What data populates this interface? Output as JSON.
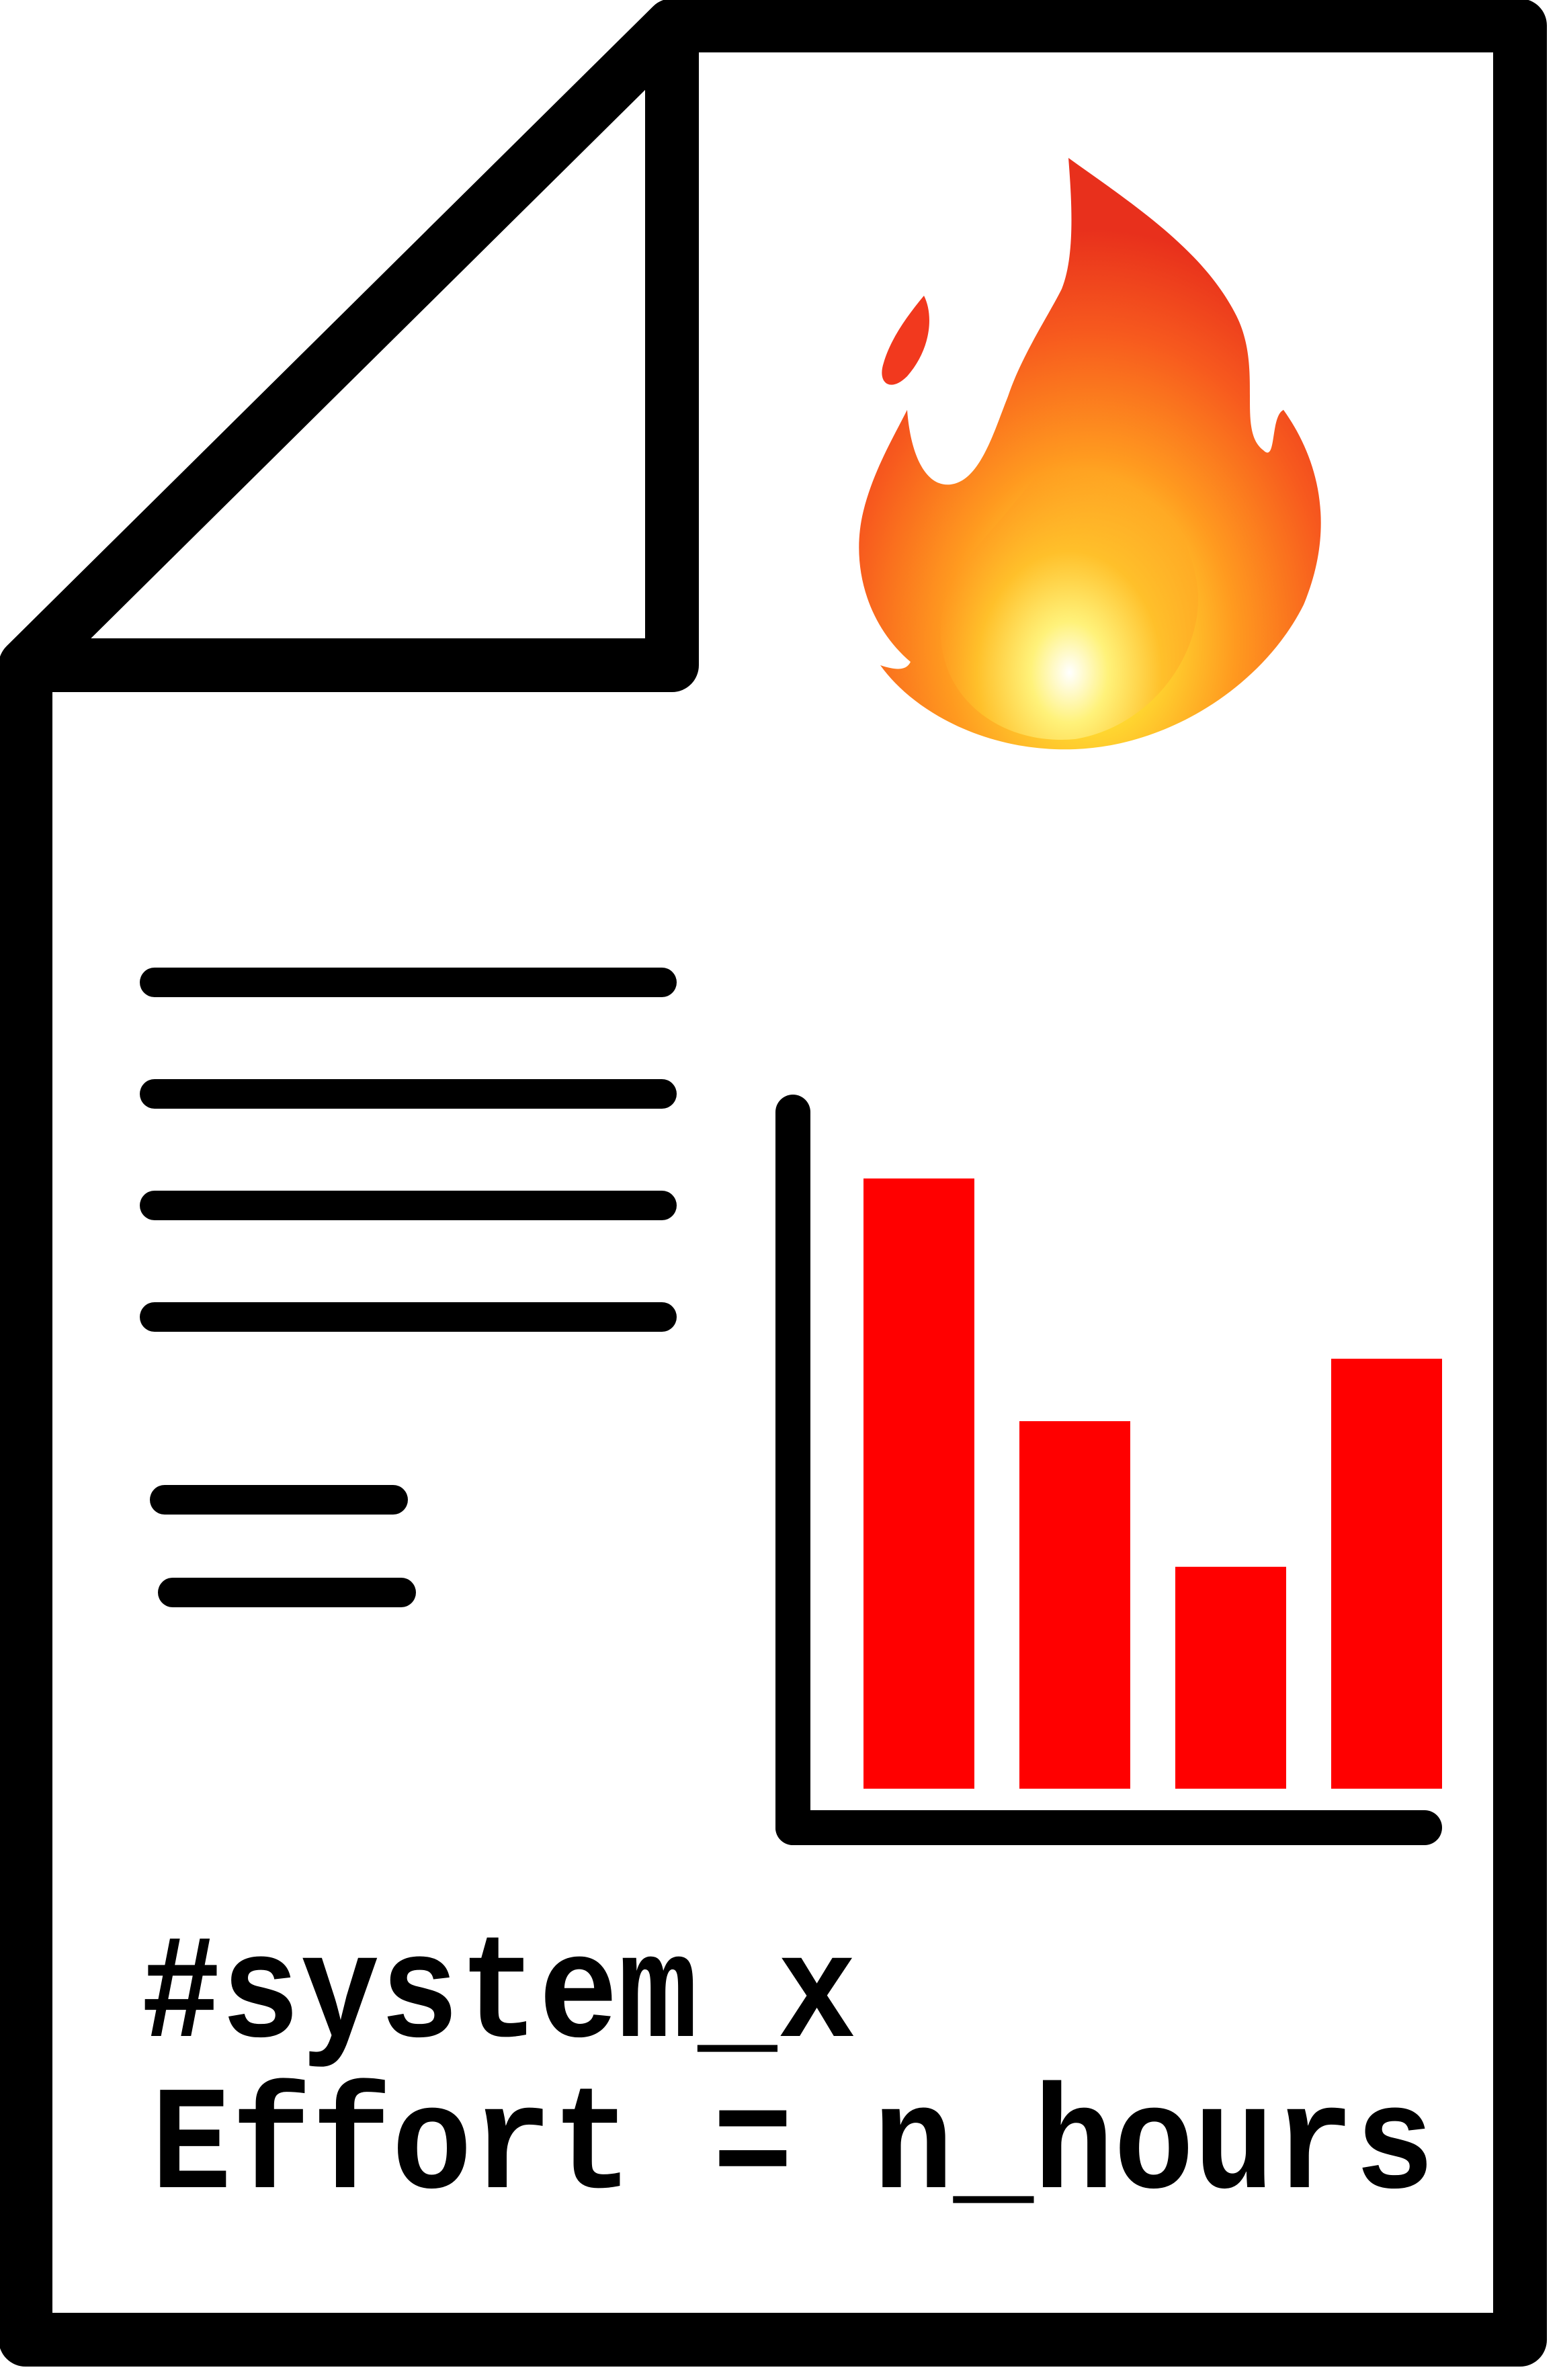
{
  "colors": {
    "outline": "#000000",
    "page": "#ffffff",
    "bar": "#ff0000",
    "flame_outer": "#f2391e",
    "flame_mid": "#ff8a1f",
    "flame_core": "#ffe033"
  },
  "icons": {
    "flame": "fire-icon",
    "document": "document-icon"
  },
  "caption": {
    "line1": "#system_x",
    "line2": "Effort = n_hours"
  },
  "chart_data": {
    "type": "bar",
    "categories": [
      "",
      "",
      "",
      ""
    ],
    "values": [
      0.88,
      0.53,
      0.32,
      0.62
    ],
    "ylim": [
      0,
      1
    ],
    "grid": false,
    "xlabel": "",
    "ylabel": ""
  }
}
